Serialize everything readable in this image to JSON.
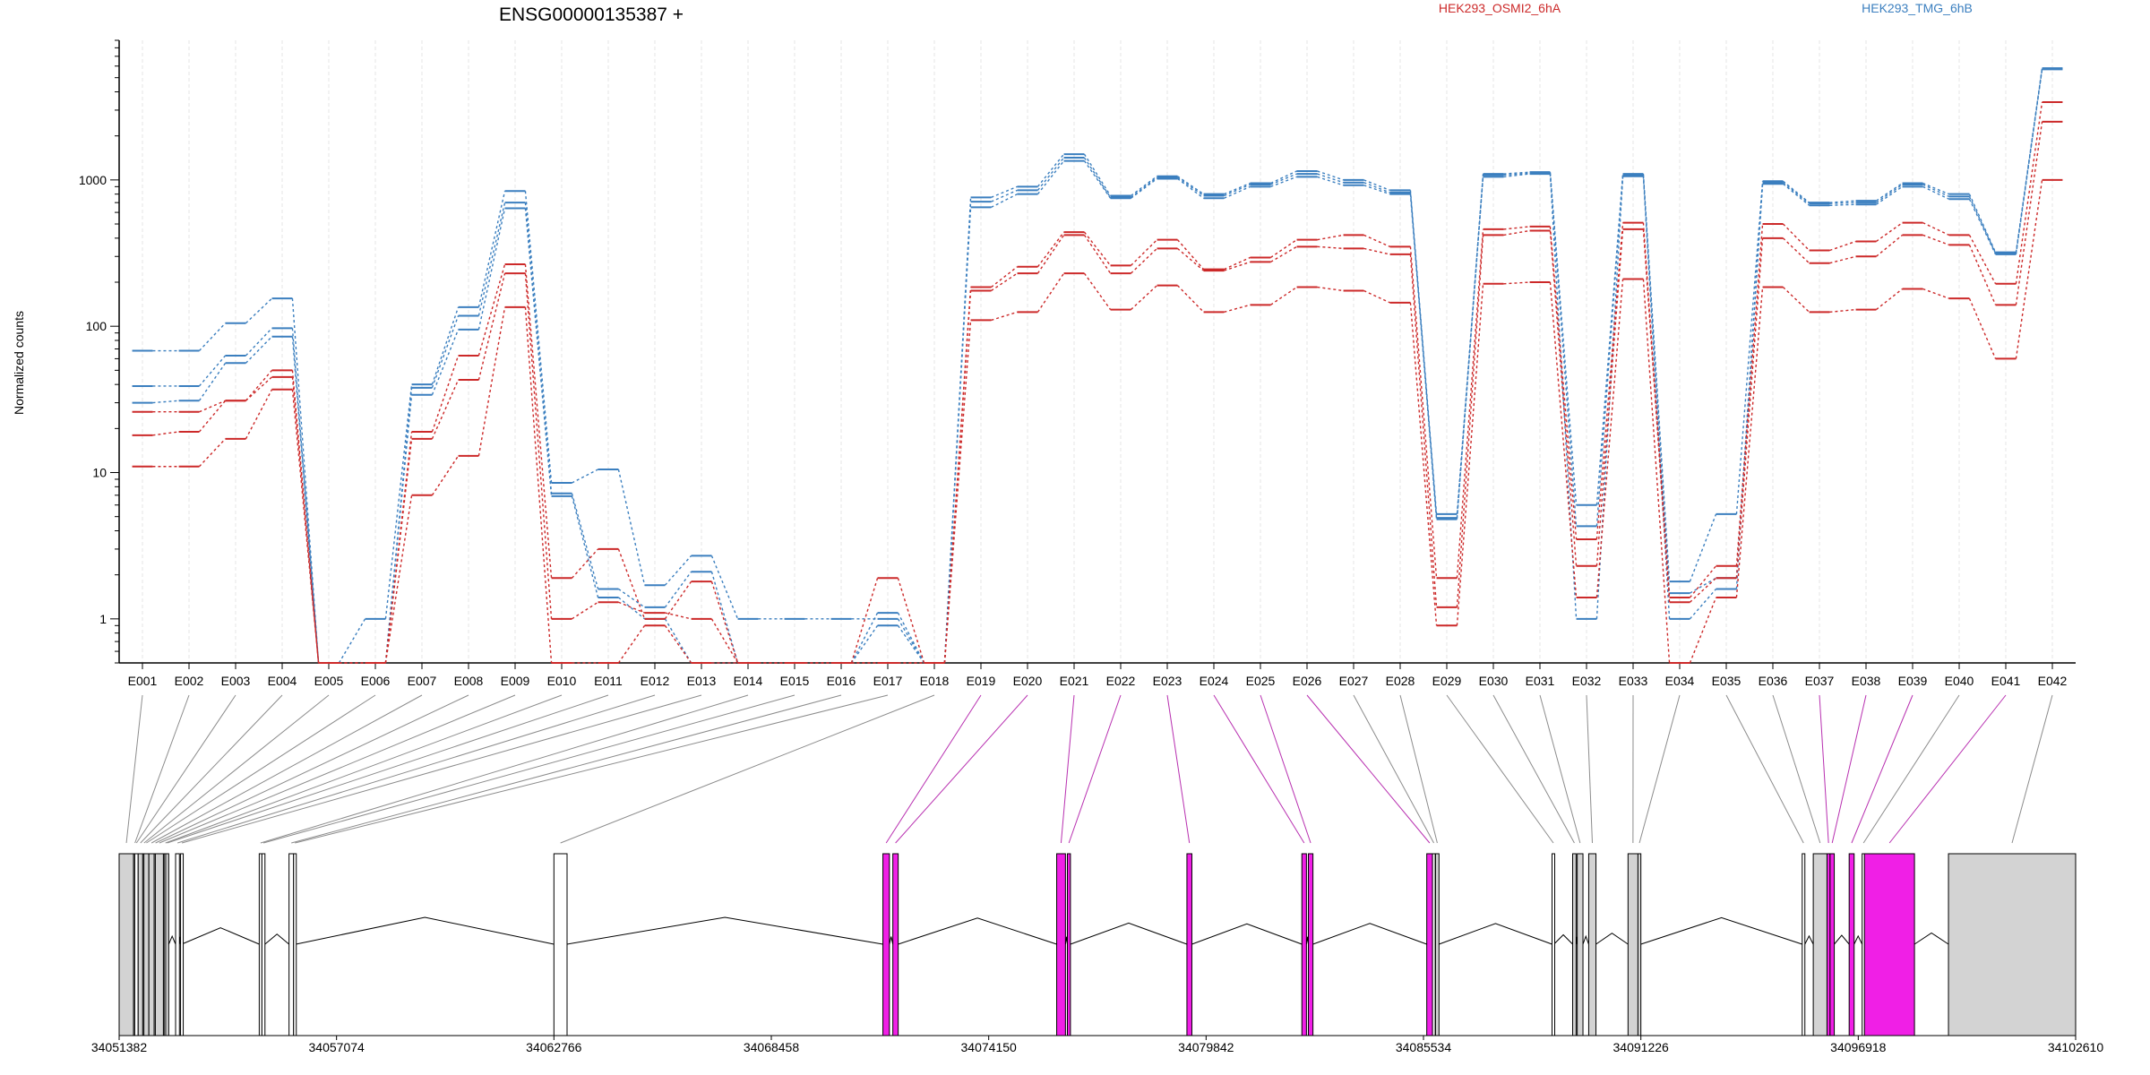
{
  "chart_data": {
    "type": "line",
    "title": "ENSG00000135387 +",
    "ylabel": "Normalized counts",
    "yscale": "log",
    "ylim": [
      0.5,
      9000
    ],
    "yticks": [
      "1",
      "10",
      "100",
      "1000"
    ],
    "legend": [
      {
        "name": "HEK293_OSMI2_6hA",
        "color": "#cc2929"
      },
      {
        "name": "HEK293_TMG_6hB",
        "color": "#3b7fbf"
      }
    ],
    "exons": [
      "E001",
      "E002",
      "E003",
      "E004",
      "E005",
      "E006",
      "E007",
      "E008",
      "E009",
      "E010",
      "E011",
      "E012",
      "E013",
      "E014",
      "E015",
      "E016",
      "E017",
      "E018",
      "E019",
      "E020",
      "E021",
      "E022",
      "E023",
      "E024",
      "E025",
      "E026",
      "E027",
      "E028",
      "E029",
      "E030",
      "E031",
      "E032",
      "E033",
      "E034",
      "E035",
      "E036",
      "E037",
      "E038",
      "E039",
      "E040",
      "E041",
      "E042"
    ],
    "series": [
      {
        "group": "HEK293_TMG_6hB",
        "color": "#3b7fbf",
        "values": [
          68,
          68,
          105,
          155,
          0.5,
          1,
          40,
          135,
          840,
          8.5,
          10.5,
          1.7,
          2.7,
          1,
          1,
          1,
          1,
          0.5,
          760,
          900,
          1500,
          780,
          1060,
          800,
          950,
          1150,
          1000,
          850,
          5.2,
          1100,
          1130,
          6,
          1100,
          1.8,
          5.2,
          980,
          700,
          720,
          950,
          800,
          320,
          5800
        ]
      },
      {
        "group": "HEK293_TMG_6hB",
        "color": "#3b7fbf",
        "values": [
          39,
          39,
          63,
          97,
          0.5,
          0.5,
          38,
          118,
          700,
          7.2,
          1.6,
          1.2,
          2.1,
          0.5,
          0.5,
          0.5,
          1.1,
          0.5,
          710,
          850,
          1420,
          760,
          1040,
          780,
          930,
          1100,
          960,
          820,
          4.9,
          1080,
          1110,
          4.3,
          1080,
          1.5,
          1.9,
          960,
          690,
          700,
          930,
          770,
          315,
          5750
        ]
      },
      {
        "group": "HEK293_TMG_6hB",
        "color": "#3b7fbf",
        "values": [
          30,
          31,
          56,
          85,
          0.5,
          0.5,
          34,
          95,
          640,
          6.9,
          1.4,
          1,
          0.5,
          0.5,
          0.5,
          0.5,
          0.9,
          0.5,
          650,
          800,
          1350,
          750,
          1020,
          750,
          900,
          1050,
          920,
          800,
          4.8,
          1050,
          1100,
          1,
          1060,
          1,
          1.6,
          940,
          670,
          680,
          900,
          740,
          310,
          5700
        ]
      },
      {
        "group": "HEK293_OSMI2_6hA",
        "color": "#cc2929",
        "values": [
          26,
          26,
          31,
          50,
          0.5,
          0.5,
          19,
          63,
          265,
          1.9,
          3,
          1,
          1.8,
          0.5,
          0.5,
          0.5,
          1.9,
          0.5,
          185,
          255,
          440,
          260,
          390,
          245,
          295,
          390,
          420,
          350,
          1.9,
          460,
          480,
          3.5,
          510,
          1.4,
          2.3,
          500,
          330,
          380,
          510,
          420,
          195,
          3400
        ]
      },
      {
        "group": "HEK293_OSMI2_6hA",
        "color": "#cc2929",
        "values": [
          18,
          19,
          31,
          45,
          0.5,
          0.5,
          17,
          43,
          230,
          1,
          1.3,
          1.1,
          1,
          0.5,
          0.5,
          0.5,
          0.5,
          0.5,
          175,
          230,
          420,
          230,
          340,
          240,
          275,
          350,
          340,
          310,
          1.2,
          420,
          450,
          2.3,
          460,
          1.3,
          1.9,
          400,
          270,
          300,
          420,
          360,
          140,
          2500
        ]
      },
      {
        "group": "HEK293_OSMI2_6hA",
        "color": "#cc2929",
        "values": [
          11,
          11,
          17,
          37,
          0.5,
          0.5,
          7,
          13,
          135,
          0.5,
          0.5,
          0.9,
          0.5,
          0.5,
          0.5,
          0.5,
          0.5,
          0.5,
          110,
          125,
          230,
          130,
          190,
          125,
          140,
          185,
          175,
          145,
          0.9,
          195,
          200,
          1.4,
          210,
          0.5,
          1.4,
          185,
          125,
          130,
          180,
          155,
          60,
          1000
        ]
      }
    ],
    "coordinates": [
      "34051382",
      "34057074",
      "34062766",
      "34068458",
      "34074150",
      "34079842",
      "34085534",
      "34091226",
      "34096918",
      "34102610"
    ],
    "gene_start": 34051382,
    "gene_end": 34102610,
    "gene_model": [
      {
        "exon": "E001",
        "start": 34051382,
        "end": 34051760,
        "fill": "#d3d3d3"
      },
      {
        "exon": "E002",
        "start": 34051760,
        "end": 34051790,
        "fill": "#d3d3d3"
      },
      {
        "exon": "E003",
        "start": 34051790,
        "end": 34051880,
        "fill": "#ffffff"
      },
      {
        "exon": "E004",
        "start": 34051880,
        "end": 34052000,
        "fill": "#d3d3d3"
      },
      {
        "exon": "E005",
        "start": 34052000,
        "end": 34052030,
        "fill": "#ffffff"
      },
      {
        "exon": "E006",
        "start": 34052030,
        "end": 34052160,
        "fill": "#d3d3d3"
      },
      {
        "exon": "E007",
        "start": 34052160,
        "end": 34052300,
        "fill": "#d3d3d3"
      },
      {
        "exon": "E008",
        "start": 34052300,
        "end": 34052330,
        "fill": "#ffffff"
      },
      {
        "exon": "E009",
        "start": 34052330,
        "end": 34052540,
        "fill": "#d3d3d3"
      },
      {
        "exon": "E010",
        "start": 34052560,
        "end": 34052580,
        "fill": "#ffffff"
      },
      {
        "exon": "E011",
        "start": 34052600,
        "end": 34052680,
        "fill": "#d3d3d3"
      },
      {
        "exon": "E012",
        "start": 34052860,
        "end": 34052960,
        "fill": "#ffffff"
      },
      {
        "exon": "E013",
        "start": 34052990,
        "end": 34053020,
        "fill": "#ffffff"
      },
      {
        "exon": "E014",
        "start": 34055050,
        "end": 34055120,
        "fill": "#ffffff"
      },
      {
        "exon": "E015",
        "start": 34055120,
        "end": 34055200,
        "fill": "#ffffff"
      },
      {
        "exon": "E016",
        "start": 34055830,
        "end": 34055950,
        "fill": "#ffffff"
      },
      {
        "exon": "E017",
        "start": 34055950,
        "end": 34056010,
        "fill": "#ffffff"
      },
      {
        "exon": "E018",
        "start": 34062766,
        "end": 34063110,
        "fill": "#ffffff"
      },
      {
        "exon": "E019",
        "start": 34071380,
        "end": 34071550,
        "fill": "#f01fe6"
      },
      {
        "exon": "E020",
        "start": 34071640,
        "end": 34071780,
        "fill": "#f01fe6"
      },
      {
        "exon": "E021",
        "start": 34075930,
        "end": 34076160,
        "fill": "#f01fe6"
      },
      {
        "exon": "E022",
        "start": 34076210,
        "end": 34076290,
        "fill": "#f01fe6"
      },
      {
        "exon": "E023",
        "start": 34079340,
        "end": 34079470,
        "fill": "#f01fe6"
      },
      {
        "exon": "E024",
        "start": 34082350,
        "end": 34082470,
        "fill": "#f01fe6"
      },
      {
        "exon": "E025",
        "start": 34082520,
        "end": 34082640,
        "fill": "#f01fe6"
      },
      {
        "exon": "E026",
        "start": 34085620,
        "end": 34085770,
        "fill": "#f01fe6"
      },
      {
        "exon": "E027",
        "start": 34085770,
        "end": 34085810,
        "fill": "#ffffff"
      },
      {
        "exon": "E028",
        "start": 34085850,
        "end": 34085940,
        "fill": "#d3d3d3"
      },
      {
        "exon": "E029",
        "start": 34088900,
        "end": 34088950,
        "fill": "#ffffff"
      },
      {
        "exon": "E030",
        "start": 34089440,
        "end": 34089530,
        "fill": "#d3d3d3"
      },
      {
        "exon": "E031",
        "start": 34089560,
        "end": 34089710,
        "fill": "#d3d3d3"
      },
      {
        "exon": "E032",
        "start": 34089860,
        "end": 34090050,
        "fill": "#d3d3d3"
      },
      {
        "exon": "E033",
        "start": 34090890,
        "end": 34091150,
        "fill": "#d3d3d3"
      },
      {
        "exon": "E034",
        "start": 34091150,
        "end": 34091226,
        "fill": "#d3d3d3"
      },
      {
        "exon": "E035",
        "start": 34095450,
        "end": 34095520,
        "fill": "#ffffff"
      },
      {
        "exon": "E036",
        "start": 34095740,
        "end": 34096100,
        "fill": "#d3d3d3"
      },
      {
        "exon": "E037",
        "start": 34096100,
        "end": 34096180,
        "fill": "#f01fe6"
      },
      {
        "exon": "E038",
        "start": 34096180,
        "end": 34096290,
        "fill": "#f01fe6"
      },
      {
        "exon": "E039",
        "start": 34096680,
        "end": 34096810,
        "fill": "#f01fe6"
      },
      {
        "exon": "E040",
        "start": 34097020,
        "end": 34097080,
        "fill": "#ffffff"
      },
      {
        "exon": "E041",
        "start": 34097080,
        "end": 34098390,
        "fill": "#f01fe6"
      },
      {
        "exon": "E042",
        "start": 34099280,
        "end": 34102610,
        "fill": "#d3d3d3"
      }
    ]
  }
}
